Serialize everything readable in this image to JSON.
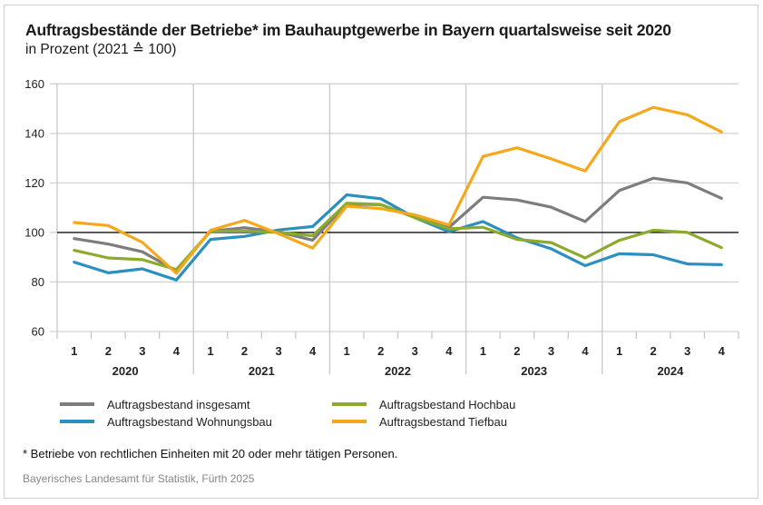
{
  "header": {
    "title": "Auftragsbestände der Betriebe* im Bauhauptgewerbe in Bayern quartalsweise seit 2020",
    "subtitle": "in Prozent (2021 ≙ 100)"
  },
  "footer": {
    "footnote": "* Betriebe von rechtlichen Einheiten mit 20 oder mehr tätigen Personen.",
    "source": "Bayerisches Landesamt für Statistik, Fürth 2025"
  },
  "chart_data": {
    "type": "line",
    "title": "Auftragsbestände der Betriebe* im Bauhauptgewerbe in Bayern quartalsweise seit 2020",
    "subtitle": "in Prozent (2021 ≙ 100)",
    "xlabel": "",
    "ylabel": "",
    "ylim": [
      60,
      160
    ],
    "yticks": [
      60,
      80,
      100,
      120,
      140,
      160
    ],
    "reference_line": 100,
    "grid": true,
    "legend_position": "bottom",
    "years": [
      "2020",
      "2021",
      "2022",
      "2023",
      "2024"
    ],
    "quarter_labels": [
      "1",
      "2",
      "3",
      "4"
    ],
    "categories": [
      "2020 Q1",
      "2020 Q2",
      "2020 Q3",
      "2020 Q4",
      "2021 Q1",
      "2021 Q2",
      "2021 Q3",
      "2021 Q4",
      "2022 Q1",
      "2022 Q2",
      "2022 Q3",
      "2022 Q4",
      "2023 Q1",
      "2023 Q2",
      "2023 Q3",
      "2023 Q4",
      "2024 Q1",
      "2024 Q2",
      "2024 Q3",
      "2024 Q4"
    ],
    "series": [
      {
        "name": "Auftragsbestand insgesamt",
        "color": "#7d7d7d",
        "values": [
          97.5,
          95.3,
          92.2,
          84.5,
          100.5,
          101.9,
          100.2,
          96.9,
          111.5,
          111.2,
          106.3,
          102.0,
          114.2,
          113.1,
          110.2,
          104.4,
          116.9,
          121.9,
          120.0,
          113.8
        ]
      },
      {
        "name": "Auftragsbestand Wohnungsbau",
        "color": "#2b8fbf",
        "values": [
          88.0,
          83.7,
          85.3,
          80.8,
          97.2,
          98.4,
          101.0,
          102.4,
          115.2,
          113.6,
          106.0,
          100.3,
          104.4,
          97.8,
          93.4,
          86.6,
          91.4,
          91.0,
          87.3,
          87.0
        ]
      },
      {
        "name": "Auftragsbestand Hochbau",
        "color": "#8caa2b",
        "values": [
          92.8,
          89.7,
          89.0,
          85.0,
          100.5,
          100.6,
          100.0,
          98.7,
          111.8,
          111.3,
          106.0,
          101.5,
          102.1,
          97.2,
          95.9,
          89.7,
          96.8,
          100.9,
          100.0,
          93.9
        ]
      },
      {
        "name": "Auftragsbestand Tiefbau",
        "color": "#f5a81c",
        "values": [
          104.0,
          102.8,
          96.0,
          83.5,
          100.9,
          104.9,
          99.5,
          93.7,
          110.6,
          109.6,
          107.1,
          103.0,
          130.7,
          134.2,
          129.7,
          124.8,
          144.7,
          150.5,
          147.5,
          140.6
        ]
      }
    ]
  }
}
